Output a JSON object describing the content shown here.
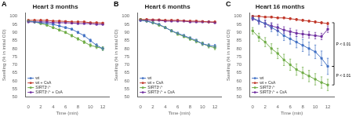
{
  "chart_data": [
    {
      "type": "line",
      "title": "Heart 3 months",
      "annotations": [
        {
          "text": "A"
        }
      ],
      "xlabel": "Time (min)",
      "ylabel": "Swelling (% in initial OD)",
      "x": [
        0,
        1,
        2,
        3,
        4,
        5,
        6,
        7,
        8,
        9,
        10,
        11,
        12
      ],
      "series": [
        {
          "name": "wt",
          "color": "#4472C4",
          "marker": "square",
          "values": [
            97,
            96.5,
            96,
            95.5,
            95,
            94,
            93,
            92,
            90,
            88,
            85,
            82,
            80
          ],
          "errors": [
            0.5,
            0.5,
            0.5,
            0.5,
            0.5,
            0.5,
            0.6,
            0.6,
            0.7,
            0.8,
            0.9,
            1.0,
            1.1
          ]
        },
        {
          "name": "wt + CsA",
          "color": "#C0392B",
          "marker": "square",
          "values": [
            97.5,
            97.5,
            97.5,
            97.5,
            97,
            97,
            96.8,
            96.5,
            96.5,
            96.5,
            96,
            96,
            95.8
          ],
          "errors": [
            0.3,
            0.3,
            0.3,
            0.3,
            0.3,
            0.3,
            0.3,
            0.3,
            0.3,
            0.3,
            0.4,
            0.4,
            0.4
          ]
        },
        {
          "name": "SIRT3⁺/⁺",
          "color": "#70AD47",
          "marker": "square",
          "values": [
            97,
            96.5,
            95.5,
            94.5,
            93,
            91.5,
            90,
            88,
            86,
            84,
            82,
            81,
            80
          ],
          "errors": [
            0.5,
            0.5,
            0.5,
            0.6,
            0.6,
            0.7,
            0.7,
            0.8,
            0.8,
            0.9,
            1.0,
            1.0,
            1.1
          ]
        },
        {
          "name": "SIRT3⁺/⁺ + CsA",
          "color": "#7030A0",
          "marker": "square",
          "values": [
            96.5,
            96.5,
            96.5,
            96.5,
            96,
            96,
            96,
            95.8,
            95.5,
            95.5,
            95.5,
            95,
            95
          ],
          "errors": [
            0.4,
            0.4,
            0.4,
            0.4,
            0.4,
            0.4,
            0.4,
            0.4,
            0.4,
            0.4,
            0.4,
            0.4,
            0.4
          ]
        }
      ],
      "xlim": [
        -0.5,
        13
      ],
      "xticks": [
        0,
        2,
        4,
        6,
        8,
        10,
        12
      ],
      "ylim": [
        50,
        102
      ],
      "yticks": [
        50,
        55,
        60,
        65,
        70,
        75,
        80,
        85,
        90,
        95,
        100
      ],
      "legend": "lower left",
      "grid": false
    },
    {
      "type": "line",
      "title": "Heart 6 months",
      "annotations": [
        {
          "text": "B"
        }
      ],
      "xlabel": "Time (min)",
      "ylabel": "Swelling (% in initial OD)",
      "x": [
        0,
        1,
        2,
        3,
        4,
        5,
        6,
        7,
        8,
        9,
        10,
        11,
        12
      ],
      "series": [
        {
          "name": "wt",
          "color": "#4472C4",
          "marker": "square",
          "values": [
            97.5,
            97,
            96,
            95,
            93,
            91,
            89.5,
            88,
            86.5,
            85,
            83,
            82,
            81.5
          ],
          "errors": [
            0.5,
            0.5,
            0.5,
            0.5,
            0.6,
            0.7,
            0.7,
            0.8,
            0.8,
            0.9,
            1.0,
            1.0,
            1.1
          ]
        },
        {
          "name": "wt + CsA",
          "color": "#C0392B",
          "marker": "square",
          "values": [
            98,
            98,
            97.8,
            97.8,
            97.5,
            97.5,
            97.5,
            97.2,
            97,
            97,
            96.8,
            96.5,
            96.5
          ],
          "errors": [
            0.3,
            0.3,
            0.3,
            0.3,
            0.3,
            0.3,
            0.3,
            0.3,
            0.3,
            0.3,
            0.4,
            0.4,
            0.4
          ]
        },
        {
          "name": "SIRT3⁺/⁺",
          "color": "#70AD47",
          "marker": "square",
          "values": [
            98,
            97,
            96,
            94.5,
            93,
            91,
            89,
            87.5,
            86,
            84.5,
            83,
            81.5,
            80.5
          ],
          "errors": [
            0.5,
            0.5,
            0.6,
            0.6,
            0.7,
            0.7,
            0.8,
            0.8,
            0.9,
            1.0,
            1.0,
            1.1,
            1.2
          ]
        },
        {
          "name": "SIRT3⁺/⁺ + CsA",
          "color": "#7030A0",
          "marker": "square",
          "values": [
            97.5,
            97.5,
            97.5,
            97.5,
            97,
            97,
            97,
            97,
            96.5,
            96.5,
            96.5,
            96.5,
            96
          ],
          "errors": [
            0.4,
            0.4,
            0.4,
            0.4,
            0.4,
            0.4,
            0.4,
            0.4,
            0.4,
            0.4,
            0.4,
            0.4,
            0.4
          ]
        }
      ],
      "xlim": [
        -0.5,
        13
      ],
      "xticks": [
        0,
        2,
        4,
        6,
        8,
        10,
        12
      ],
      "ylim": [
        50,
        102
      ],
      "yticks": [
        50,
        55,
        60,
        65,
        70,
        75,
        80,
        85,
        90,
        95,
        100
      ],
      "legend": "lower left",
      "grid": false
    },
    {
      "type": "line",
      "title": "Heart 16 months",
      "annotations": [
        {
          "text": "C"
        },
        {
          "text": "P < 0.01",
          "x": 13,
          "y": [
            96,
            69
          ]
        },
        {
          "text": "P < 0.01",
          "x": 13,
          "y": [
            69,
            57.5
          ]
        }
      ],
      "xlabel": "Time (min)",
      "ylabel": "Swelling (% in initial OD)",
      "x": [
        0,
        1,
        2,
        3,
        4,
        5,
        6,
        7,
        8,
        9,
        10,
        11,
        12
      ],
      "series": [
        {
          "name": "wt",
          "color": "#4472C4",
          "marker": "square",
          "values": [
            99,
            97,
            95.5,
            93,
            91,
            88,
            86,
            84,
            82,
            80,
            78,
            74,
            69
          ],
          "errors": [
            1.5,
            2.0,
            2.2,
            2.5,
            2.8,
            3.0,
            3.2,
            3.5,
            3.8,
            4.0,
            4.2,
            4.5,
            5.0
          ]
        },
        {
          "name": "wt + CsA",
          "color": "#C0392B",
          "marker": "square",
          "values": [
            100,
            100,
            99.5,
            99.5,
            99,
            99,
            98.5,
            98,
            97.5,
            97,
            96.5,
            96,
            95.5
          ],
          "errors": [
            0.5,
            0.5,
            0.5,
            0.5,
            0.5,
            0.5,
            0.5,
            0.6,
            0.6,
            0.6,
            0.7,
            0.7,
            0.8
          ]
        },
        {
          "name": "SIRT3⁺/⁺",
          "color": "#70AD47",
          "marker": "square",
          "values": [
            91,
            87,
            84,
            80,
            77,
            73,
            70,
            67,
            65,
            63,
            61,
            59,
            57.5
          ],
          "errors": [
            2.0,
            2.5,
            2.8,
            3.0,
            3.2,
            3.5,
            3.5,
            3.5,
            3.5,
            3.5,
            3.5,
            3.5,
            3.5
          ]
        },
        {
          "name": "SIRT3⁺/⁺ + CsA",
          "color": "#7030A0",
          "marker": "square",
          "values": [
            98.5,
            97,
            95.5,
            94,
            93,
            91.5,
            90.5,
            89.5,
            89,
            88.5,
            88,
            87.5,
            92
          ],
          "errors": [
            1.0,
            1.5,
            2.0,
            2.0,
            2.0,
            2.0,
            2.0,
            2.0,
            2.0,
            2.0,
            2.0,
            2.0,
            2.0
          ]
        }
      ],
      "xlim": [
        -0.5,
        13
      ],
      "xticks": [
        0,
        2,
        4,
        6,
        8,
        10,
        12
      ],
      "ylim": [
        50,
        102
      ],
      "yticks": [
        50,
        55,
        60,
        65,
        70,
        75,
        80,
        85,
        90,
        95,
        100
      ],
      "legend": "lower left",
      "grid": false
    }
  ]
}
